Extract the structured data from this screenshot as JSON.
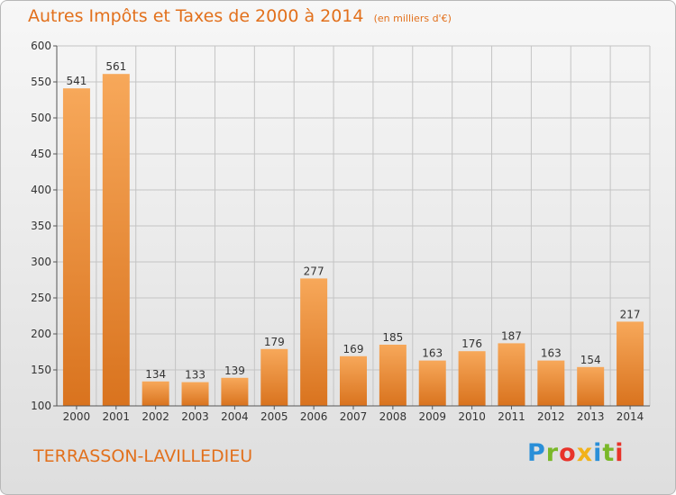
{
  "title": "Autres Impôts et Taxes de 2000 à 2014",
  "unit": "(en milliers d'€)",
  "commune": "TERRASSON-LAVILLEDIEU",
  "logo": {
    "letters": [
      {
        "char": "P",
        "color": "#2a8fd8"
      },
      {
        "char": "r",
        "color": "#7ab829"
      },
      {
        "char": "o",
        "color": "#e8332a"
      },
      {
        "char": "x",
        "color": "#f2b21b"
      },
      {
        "char": "i",
        "color": "#2a8fd8"
      },
      {
        "char": "t",
        "color": "#7ab829"
      },
      {
        "char": "i",
        "color": "#e8332a"
      }
    ]
  },
  "colors": {
    "bar_light": "#f7a85a",
    "bar_dark": "#d9731e",
    "grid": "#c4c4c4",
    "axis_text": "#333333",
    "accent": "#e2701c"
  },
  "chart_data": {
    "type": "bar",
    "categories": [
      "2000",
      "2001",
      "2002",
      "2003",
      "2004",
      "2005",
      "2006",
      "2007",
      "2008",
      "2009",
      "2010",
      "2011",
      "2012",
      "2013",
      "2014"
    ],
    "values": [
      541,
      561,
      134,
      133,
      139,
      179,
      277,
      169,
      185,
      163,
      176,
      187,
      163,
      154,
      217
    ],
    "ylim": [
      100,
      600
    ],
    "yticks": [
      100,
      150,
      200,
      250,
      300,
      350,
      400,
      450,
      500,
      550,
      600
    ],
    "grid": true,
    "title": "Autres Impôts et Taxes de 2000 à 2014",
    "unit_label": "(en milliers d'€)"
  }
}
